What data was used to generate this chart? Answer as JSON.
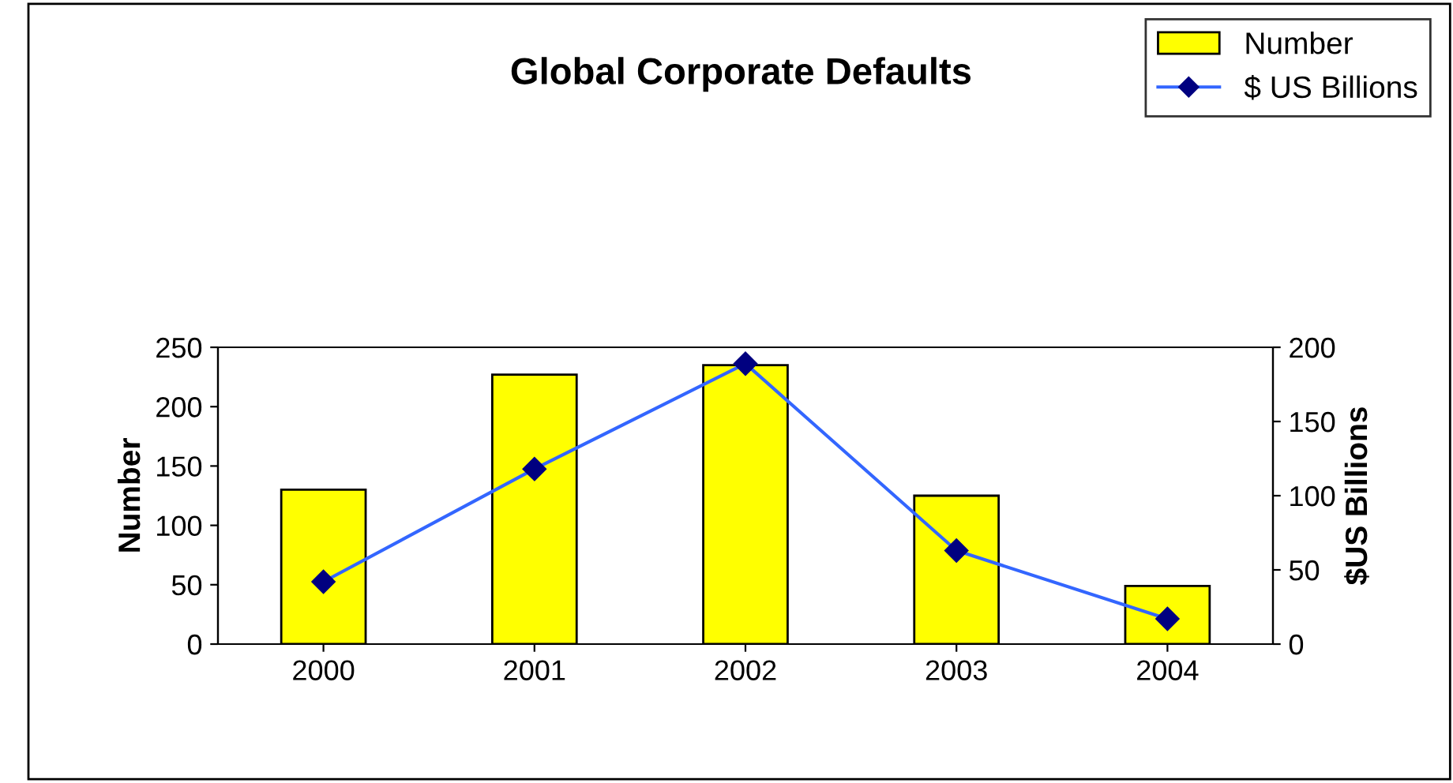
{
  "chart_data": {
    "type": "bar",
    "title": "Global Corporate Defaults",
    "ylabel": "Number",
    "y2label": "$US Billions",
    "categories": [
      "2000",
      "2001",
      "2002",
      "2003",
      "2004"
    ],
    "series": [
      {
        "name": "Number",
        "color": "#ffff00",
        "values": [
          130,
          227,
          235,
          125,
          49
        ]
      },
      {
        "name": "$ US Billions",
        "type": "line",
        "axis": "y2",
        "color": "#3366ff",
        "marker": "diamond",
        "values": [
          42,
          118,
          189,
          63,
          17
        ]
      }
    ],
    "ylim": [
      0,
      250
    ],
    "yticks": [
      0,
      50,
      100,
      150,
      200,
      250
    ],
    "y2lim": [
      0,
      200
    ],
    "y2ticks": [
      0,
      50,
      100,
      150,
      200
    ],
    "grid": false,
    "legend": "top right"
  }
}
